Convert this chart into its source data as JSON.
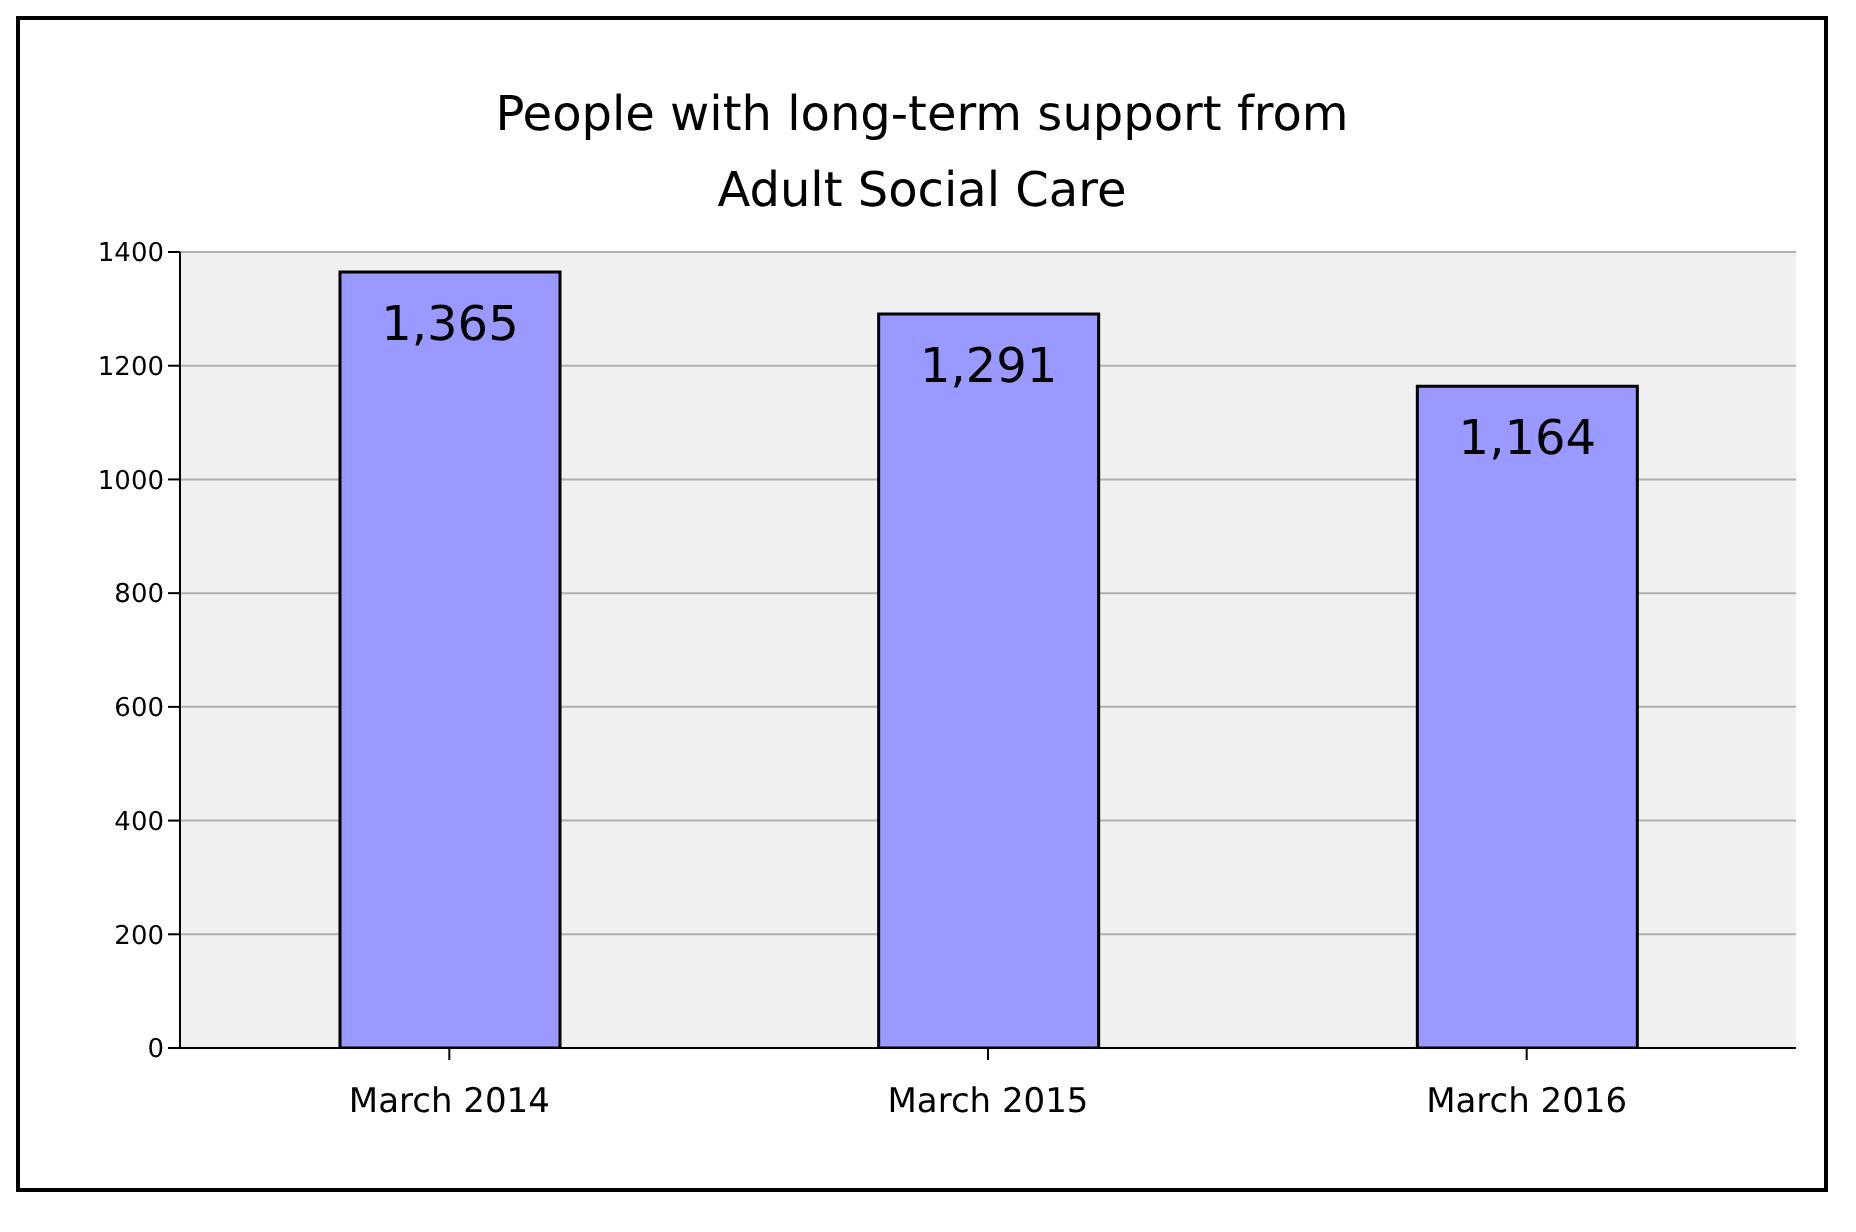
{
  "chart_data": {
    "type": "bar",
    "title": "People with long-term support from Adult Social Care",
    "categories": [
      "March 2014",
      "March 2015",
      "March 2016"
    ],
    "values": [
      1365,
      1291,
      1164
    ],
    "value_labels": [
      "1,365",
      "1,291",
      "1,164"
    ],
    "color": "#9999ff",
    "ylim": [
      0,
      1400
    ],
    "yticks": [
      0,
      200,
      400,
      600,
      800,
      1000,
      1200,
      1400
    ],
    "grid": "y"
  }
}
